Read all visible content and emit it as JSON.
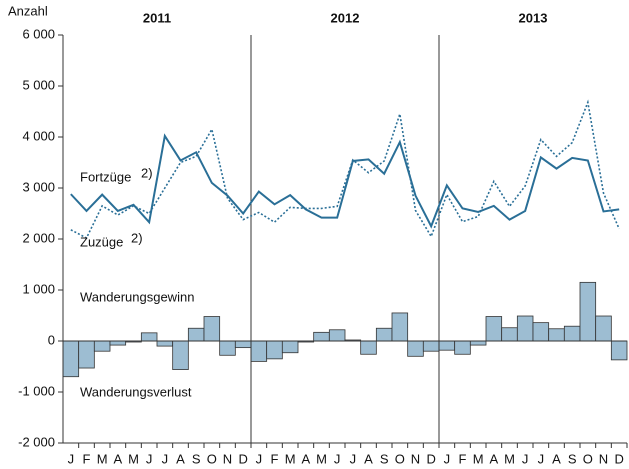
{
  "chart_data": {
    "type": "combo",
    "y_label": "Anzahl",
    "year_groups": [
      "2011",
      "2012",
      "2013"
    ],
    "categories": [
      "J",
      "F",
      "M",
      "A",
      "M",
      "J",
      "J",
      "A",
      "S",
      "O",
      "N",
      "D",
      "J",
      "F",
      "M",
      "A",
      "M",
      "J",
      "J",
      "A",
      "S",
      "O",
      "N",
      "D",
      "J",
      "F",
      "M",
      "A",
      "M",
      "J",
      "J",
      "A",
      "S",
      "O",
      "N",
      "D"
    ],
    "ylim": [
      -2000,
      6000
    ],
    "yticks": [
      {
        "value": -2000,
        "label": "-2 000"
      },
      {
        "value": -1000,
        "label": "-1 000"
      },
      0,
      {
        "value": 1000,
        "label": "1 000"
      },
      {
        "value": 2000,
        "label": "2 000"
      },
      {
        "value": 3000,
        "label": "3 000"
      },
      {
        "value": 4000,
        "label": "4 000"
      },
      {
        "value": 5000,
        "label": "5 000"
      },
      {
        "value": 6000,
        "label": "6 000"
      }
    ],
    "series": [
      {
        "type": "bar",
        "color": "#9dbdd2",
        "values": [
          -700,
          -530,
          -200,
          -80,
          -20,
          160,
          -100,
          -560,
          250,
          480,
          -280,
          -130,
          -400,
          -350,
          -230,
          -20,
          170,
          220,
          20,
          -260,
          250,
          550,
          -300,
          -200,
          -180,
          -260,
          -80,
          480,
          260,
          490,
          360,
          240,
          290,
          1150,
          490,
          -370
        ]
      },
      {
        "type": "line",
        "style": "solid",
        "name": "Fortzüge",
        "note": "2)",
        "color": "#2a6f97",
        "values": [
          2880,
          2550,
          2870,
          2550,
          2670,
          2330,
          4020,
          3540,
          3700,
          3100,
          2850,
          2500,
          2930,
          2680,
          2860,
          2580,
          2420,
          2420,
          3530,
          3560,
          3280,
          3900,
          2850,
          2250,
          3050,
          2600,
          2530,
          2650,
          2380,
          2550,
          3600,
          3380,
          3590,
          3540,
          2540,
          2580
        ]
      },
      {
        "type": "line",
        "style": "dotted",
        "name": "Zuzüge",
        "note": "2)",
        "color": "#2a6f97",
        "values": [
          2180,
          2020,
          2650,
          2470,
          2650,
          2500,
          3000,
          3500,
          3620,
          4150,
          2800,
          2380,
          2520,
          2330,
          2620,
          2600,
          2600,
          2640,
          3550,
          3300,
          3530,
          4450,
          2560,
          2050,
          2870,
          2340,
          2440,
          3130,
          2640,
          3040,
          3950,
          3620,
          3890,
          4680,
          2900,
          2200
        ]
      }
    ],
    "annotations": [
      "Wanderungsgewinn",
      "Wanderungsverlust"
    ]
  }
}
